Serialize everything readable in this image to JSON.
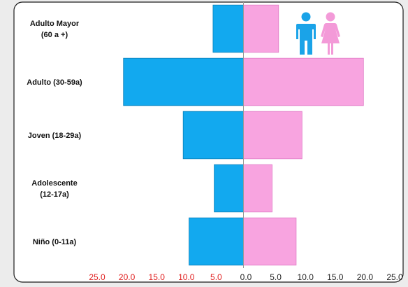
{
  "chart_data": {
    "type": "bar",
    "orientation": "horizontal",
    "layout": "population-pyramid",
    "categories": [
      [
        "Adulto Mayor",
        "(60 a +)"
      ],
      [
        "Adulto (30-59a)"
      ],
      [
        "Joven (18-29a)"
      ],
      [
        "Adolescente",
        "(12-17a)"
      ],
      [
        "Niño (0-11a)"
      ]
    ],
    "series": [
      {
        "side": "left",
        "color": "#12a9ef",
        "values": [
          5.2,
          20.5,
          10.3,
          5.0,
          9.3
        ]
      },
      {
        "side": "right",
        "color": "#f8a4e0",
        "values": [
          6.0,
          20.5,
          10.0,
          4.9,
          9.0
        ]
      }
    ],
    "x_ticks": [
      "25.0",
      "20.0",
      "15.0",
      "10.0",
      "5.0",
      "0.0",
      "5.0",
      "10.0",
      "15.0",
      "20.0",
      "25.0"
    ],
    "left_tick_color": "#e02020",
    "right_tick_color": "#222222",
    "xlim": [
      -25,
      25
    ],
    "icon": [
      "male-figure-icon",
      "female-figure-icon"
    ],
    "legend": "none",
    "grid": false
  }
}
